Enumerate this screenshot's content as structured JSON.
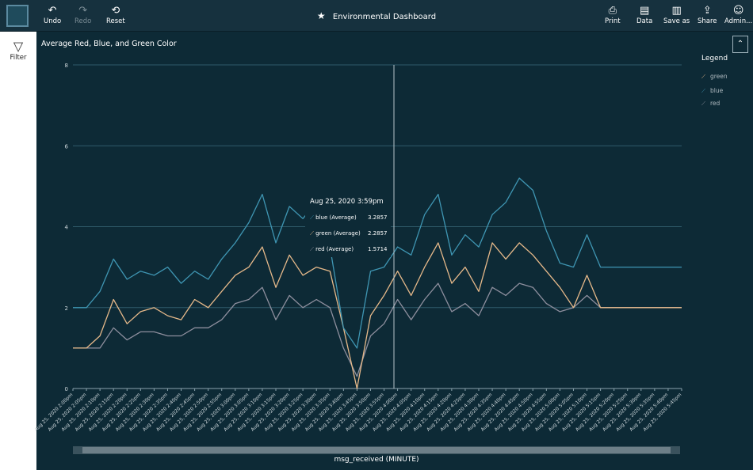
{
  "toolbar": {
    "undo": "Undo",
    "redo": "Redo",
    "reset": "Reset",
    "title": "Environmental Dashboard",
    "print": "Print",
    "data": "Data",
    "save_as": "Save as",
    "share": "Share",
    "admin": "Admin..."
  },
  "sidebar": {
    "filter": "Filter"
  },
  "visual": {
    "title": "Average Red, Blue, and Green Color",
    "legend_title": "Legend",
    "x_axis_title": "msg_received (MINUTE)"
  },
  "tooltip": {
    "title": "Aug 25, 2020 3:59pm",
    "rows": [
      {
        "label": "blue (Average)",
        "value": "3.2857"
      },
      {
        "label": "green (Average)",
        "value": "2.2857"
      },
      {
        "label": "red (Average)",
        "value": "1.5714"
      }
    ]
  },
  "colors": {
    "blue": "#3f96b3",
    "green": "#e6b98a",
    "red": "#8e8f9e",
    "grid": "#2f5b6a"
  },
  "chart_data": {
    "type": "line",
    "xlabel": "msg_received (MINUTE)",
    "ylabel": "",
    "ylim": [
      0,
      8
    ],
    "y_ticks": [
      0,
      2,
      4,
      6,
      8
    ],
    "x_ticks": [
      "Aug 25, 2020 2:00pm",
      "Aug 25, 2020 2:05pm",
      "Aug 25, 2020 2:10pm",
      "Aug 25, 2020 2:15pm",
      "Aug 25, 2020 2:20pm",
      "Aug 25, 2020 2:25pm",
      "Aug 25, 2020 2:30pm",
      "Aug 25, 2020 2:35pm",
      "Aug 25, 2020 2:40pm",
      "Aug 25, 2020 2:45pm",
      "Aug 25, 2020 2:50pm",
      "Aug 25, 2020 2:55pm",
      "Aug 25, 2020 3:00pm",
      "Aug 25, 2020 3:05pm",
      "Aug 25, 2020 3:10pm",
      "Aug 25, 2020 3:15pm",
      "Aug 25, 2020 3:20pm",
      "Aug 25, 2020 3:25pm",
      "Aug 25, 2020 3:30pm",
      "Aug 25, 2020 3:35pm",
      "Aug 25, 2020 3:40pm",
      "Aug 25, 2020 3:45pm",
      "Aug 25, 2020 3:50pm",
      "Aug 25, 2020 3:55pm",
      "Aug 25, 2020 4:00pm",
      "Aug 25, 2020 4:05pm",
      "Aug 25, 2020 4:10pm",
      "Aug 25, 2020 4:15pm",
      "Aug 25, 2020 4:20pm",
      "Aug 25, 2020 4:25pm",
      "Aug 25, 2020 4:30pm",
      "Aug 25, 2020 4:35pm",
      "Aug 25, 2020 4:40pm",
      "Aug 25, 2020 4:45pm",
      "Aug 25, 2020 4:50pm",
      "Aug 25, 2020 4:55pm",
      "Aug 25, 2020 5:00pm",
      "Aug 25, 2020 5:05pm",
      "Aug 25, 2020 5:10pm",
      "Aug 25, 2020 5:15pm",
      "Aug 25, 2020 5:20pm",
      "Aug 25, 2020 5:25pm",
      "Aug 25, 2020 5:30pm",
      "Aug 25, 2020 5:35pm",
      "Aug 25, 2020 5:40pm",
      "Aug 25, 2020 5:45pm"
    ],
    "series": [
      {
        "name": "green",
        "x": [
          0,
          5,
          10,
          15,
          20,
          25,
          30,
          35,
          40,
          45,
          50,
          55,
          60,
          65,
          70,
          75,
          80,
          85,
          90,
          95,
          100,
          105,
          110,
          115,
          120,
          125,
          130,
          135,
          140,
          145,
          150,
          155,
          160,
          165,
          170,
          175,
          180,
          185,
          190,
          195,
          200,
          205,
          210,
          215,
          220,
          225
        ],
        "values": [
          1,
          1,
          1.3,
          2.2,
          1.6,
          1.9,
          2,
          1.8,
          1.7,
          2.2,
          2,
          2.4,
          2.8,
          3,
          3.5,
          2.5,
          3.3,
          2.8,
          3,
          2.9,
          1.5,
          0,
          1.8,
          2.3,
          2.9,
          2.3,
          3,
          3.6,
          2.6,
          3,
          2.4,
          3.6,
          3.2,
          3.6,
          3.3,
          2.9,
          2.5,
          2,
          2.8,
          2,
          2,
          2,
          2,
          2,
          2,
          2
        ]
      },
      {
        "name": "blue",
        "x": [
          0,
          5,
          10,
          15,
          20,
          25,
          30,
          35,
          40,
          45,
          50,
          55,
          60,
          65,
          70,
          75,
          80,
          85,
          90,
          95,
          100,
          105,
          110,
          115,
          120,
          125,
          130,
          135,
          140,
          145,
          150,
          155,
          160,
          165,
          170,
          175,
          180,
          185,
          190,
          195,
          200,
          205,
          210,
          215,
          220,
          225
        ],
        "values": [
          2,
          2,
          2.4,
          3.2,
          2.7,
          2.9,
          2.8,
          3,
          2.6,
          2.9,
          2.7,
          3.2,
          3.6,
          4.1,
          4.8,
          3.6,
          4.5,
          4.2,
          4.6,
          3.5,
          1.5,
          1,
          2.9,
          3,
          3.5,
          3.3,
          4.3,
          4.8,
          3.3,
          3.8,
          3.5,
          4.3,
          4.6,
          5.2,
          4.9,
          3.9,
          3.1,
          3,
          3.8,
          3,
          3,
          3,
          3,
          3,
          3,
          3
        ]
      },
      {
        "name": "red",
        "x": [
          0,
          5,
          10,
          15,
          20,
          25,
          30,
          35,
          40,
          45,
          50,
          55,
          60,
          65,
          70,
          75,
          80,
          85,
          90,
          95,
          100,
          105,
          110,
          115,
          120,
          125,
          130,
          135,
          140,
          145,
          150,
          155,
          160,
          165,
          170,
          175,
          180,
          185,
          190,
          195,
          200,
          205,
          210,
          215,
          220,
          225
        ],
        "values": [
          1,
          1,
          1,
          1.5,
          1.2,
          1.4,
          1.4,
          1.3,
          1.3,
          1.5,
          1.5,
          1.7,
          2.1,
          2.2,
          2.5,
          1.7,
          2.3,
          2,
          2.2,
          2,
          1,
          0.3,
          1.3,
          1.6,
          2.2,
          1.7,
          2.2,
          2.6,
          1.9,
          2.1,
          1.8,
          2.5,
          2.3,
          2.6,
          2.5,
          2.1,
          1.9,
          2,
          2.3,
          2,
          2,
          2,
          2,
          2,
          2,
          2
        ]
      }
    ],
    "legend": [
      "green",
      "blue",
      "red"
    ],
    "legend_position": "right",
    "grid": true
  }
}
